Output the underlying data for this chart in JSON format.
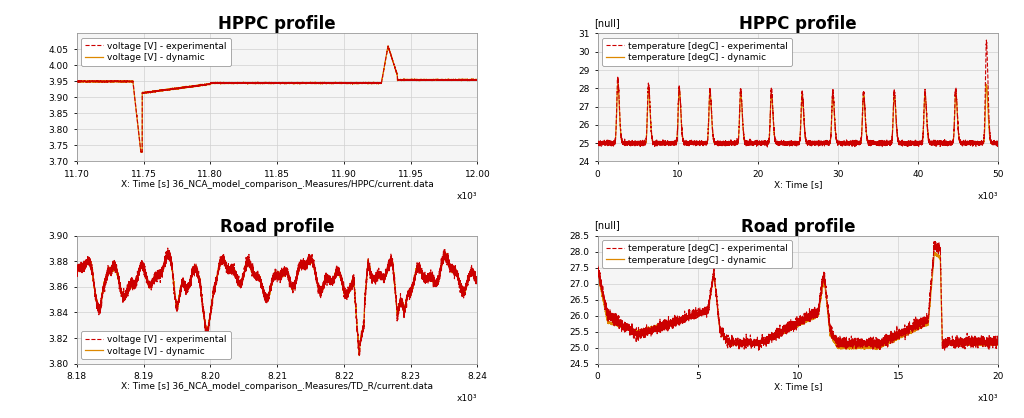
{
  "fig_width": 10.24,
  "fig_height": 4.18,
  "background_color": "#ffffff",
  "plots": [
    {
      "title": "HPPC profile",
      "title_fontsize": 12,
      "title_fontweight": "bold",
      "xlabel": "X: Time [s] 36_NCA_model_comparison_.Measures/HPPC/current.data",
      "xlabel_fontsize": 6.5,
      "ylabel": "",
      "xlim": [
        11700,
        12000
      ],
      "xtick_labels": [
        "11.70",
        "11.75",
        "11.80",
        "11.85",
        "11.90",
        "11.95",
        "12.00"
      ],
      "xtick_values": [
        11700,
        11750,
        11800,
        11850,
        11900,
        11950,
        12000
      ],
      "ylim": [
        3.7,
        4.1
      ],
      "ytick_labels": [
        "3.70",
        "3.75",
        "3.80",
        "3.85",
        "3.90",
        "3.95",
        "4.00",
        "4.05"
      ],
      "ytick_values": [
        3.7,
        3.75,
        3.8,
        3.85,
        3.9,
        3.95,
        4.0,
        4.05
      ],
      "legend_loc": "upper left",
      "legend_labels": [
        "voltage [V] - experimental",
        "voltage [V] - dynamic"
      ],
      "exp_color": "#cc0000",
      "dyn_color": "#dd8800",
      "grid": true,
      "xscale_label": "x10³"
    },
    {
      "title": "HPPC profile",
      "title_fontsize": 12,
      "title_fontweight": "bold",
      "xlabel": "X: Time [s]",
      "xlabel_fontsize": 6.5,
      "ylabel": "[null]",
      "xlim": [
        0,
        50000
      ],
      "xtick_labels": [
        "0",
        "10",
        "20",
        "30",
        "40",
        "50"
      ],
      "xtick_values": [
        0,
        10000,
        20000,
        30000,
        40000,
        50000
      ],
      "ylim": [
        24,
        31
      ],
      "ytick_labels": [
        "24",
        "25",
        "26",
        "27",
        "28",
        "29",
        "30",
        "31"
      ],
      "ytick_values": [
        24,
        25,
        26,
        27,
        28,
        29,
        30,
        31
      ],
      "legend_loc": "upper left",
      "legend_labels": [
        "temperature [degC] - experimental",
        "temperature [degC] - dynamic"
      ],
      "exp_color": "#cc0000",
      "dyn_color": "#dd8800",
      "grid": true,
      "xscale_label": "x10³"
    },
    {
      "title": "Road profile",
      "title_fontsize": 12,
      "title_fontweight": "bold",
      "xlabel": "X: Time [s] 36_NCA_model_comparison_.Measures/TD_R/current.data",
      "xlabel_fontsize": 6.5,
      "ylabel": "",
      "xlim": [
        8180,
        8240
      ],
      "xtick_labels": [
        "8.18",
        "8.19",
        "8.20",
        "8.21",
        "8.22",
        "8.23",
        "8.24"
      ],
      "xtick_values": [
        8180,
        8190,
        8200,
        8210,
        8220,
        8230,
        8240
      ],
      "ylim": [
        3.8,
        3.9
      ],
      "ytick_labels": [
        "3.80",
        "3.82",
        "3.84",
        "3.86",
        "3.88",
        "3.90"
      ],
      "ytick_values": [
        3.8,
        3.82,
        3.84,
        3.86,
        3.88,
        3.9
      ],
      "legend_loc": "lower left",
      "legend_labels": [
        "voltage [V] - experimental",
        "voltage [V] - dynamic"
      ],
      "exp_color": "#cc0000",
      "dyn_color": "#dd8800",
      "grid": true,
      "xscale_label": "x10³"
    },
    {
      "title": "Road profile",
      "title_fontsize": 12,
      "title_fontweight": "bold",
      "xlabel": "X: Time [s]",
      "xlabel_fontsize": 6.5,
      "ylabel": "[null]",
      "xlim": [
        0,
        20000
      ],
      "xtick_labels": [
        "0",
        "5",
        "10",
        "15",
        "20"
      ],
      "xtick_values": [
        0,
        5000,
        10000,
        15000,
        20000
      ],
      "ylim": [
        24.5,
        28.5
      ],
      "ytick_labels": [
        "24.5",
        "25.0",
        "25.5",
        "26.0",
        "26.5",
        "27.0",
        "27.5",
        "28.0",
        "28.5"
      ],
      "ytick_values": [
        24.5,
        25.0,
        25.5,
        26.0,
        26.5,
        27.0,
        27.5,
        28.0,
        28.5
      ],
      "legend_loc": "upper left",
      "legend_labels": [
        "temperature [degC] - experimental",
        "temperature [degC] - dynamic"
      ],
      "exp_color": "#cc0000",
      "dyn_color": "#dd8800",
      "grid": true,
      "xscale_label": "x10³"
    }
  ]
}
